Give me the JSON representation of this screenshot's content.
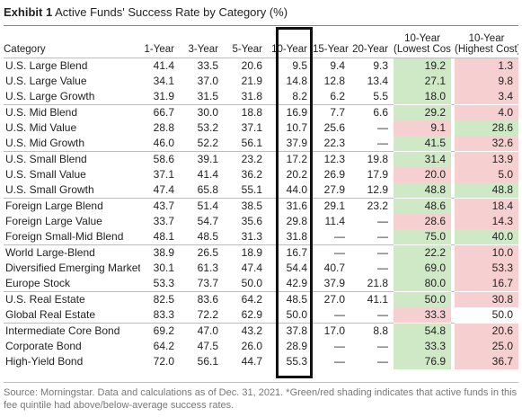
{
  "exhibit_label": "Exhibit 1",
  "title": "Active Funds' Success Rate by Category (%)",
  "columns": {
    "category": "Category",
    "y1": "1-Year",
    "y3": "3-Year",
    "y5": "5-Year",
    "y10": "10-Year",
    "y15": "15-Year",
    "y20": "20-Year",
    "low_cost_line1": "10-Year",
    "low_cost_line2": "(Lowest Cost) *",
    "high_cost_line1": "10-Year",
    "high_cost_line2": "(Highest Cost)"
  },
  "rows": [
    {
      "category": "U.S. Large Blend",
      "y1": "41.4",
      "y3": "33.5",
      "y5": "20.6",
      "y10": "9.5",
      "y15": "9.4",
      "y20": "9.3",
      "low": "19.2",
      "low_shade": "green",
      "high": "1.3",
      "high_shade": "red",
      "group_start": true
    },
    {
      "category": "U.S. Large Value",
      "y1": "34.1",
      "y3": "37.0",
      "y5": "21.9",
      "y10": "14.8",
      "y15": "12.8",
      "y20": "13.4",
      "low": "27.1",
      "low_shade": "green",
      "high": "9.8",
      "high_shade": "red",
      "group_start": false
    },
    {
      "category": "U.S. Large Growth",
      "y1": "31.9",
      "y3": "31.5",
      "y5": "31.8",
      "y10": "8.2",
      "y15": "6.2",
      "y20": "5.5",
      "low": "18.0",
      "low_shade": "green",
      "high": "3.4",
      "high_shade": "red",
      "group_start": false
    },
    {
      "category": "U.S. Mid Blend",
      "y1": "66.7",
      "y3": "30.0",
      "y5": "18.8",
      "y10": "16.9",
      "y15": "7.7",
      "y20": "6.6",
      "low": "29.2",
      "low_shade": "green",
      "high": "4.0",
      "high_shade": "red",
      "group_start": true
    },
    {
      "category": "U.S. Mid Value",
      "y1": "28.8",
      "y3": "53.2",
      "y5": "37.1",
      "y10": "10.7",
      "y15": "25.6",
      "y20": "—",
      "low": "9.1",
      "low_shade": "red",
      "high": "28.6",
      "high_shade": "green",
      "group_start": false
    },
    {
      "category": "U.S. Mid Growth",
      "y1": "46.0",
      "y3": "52.2",
      "y5": "56.1",
      "y10": "37.9",
      "y15": "22.3",
      "y20": "—",
      "low": "41.5",
      "low_shade": "green",
      "high": "32.6",
      "high_shade": "red",
      "group_start": false
    },
    {
      "category": "U.S. Small Blend",
      "y1": "58.6",
      "y3": "39.1",
      "y5": "23.2",
      "y10": "17.2",
      "y15": "12.3",
      "y20": "19.8",
      "low": "31.4",
      "low_shade": "green",
      "high": "13.9",
      "high_shade": "red",
      "group_start": true
    },
    {
      "category": "U.S. Small Value",
      "y1": "37.1",
      "y3": "41.4",
      "y5": "36.2",
      "y10": "20.2",
      "y15": "26.9",
      "y20": "17.9",
      "low": "20.0",
      "low_shade": "red",
      "high": "5.0",
      "high_shade": "red",
      "group_start": false
    },
    {
      "category": "U.S. Small Growth",
      "y1": "47.4",
      "y3": "65.8",
      "y5": "55.1",
      "y10": "44.0",
      "y15": "27.9",
      "y20": "12.9",
      "low": "48.8",
      "low_shade": "green",
      "high": "48.8",
      "high_shade": "green",
      "group_start": false
    },
    {
      "category": "Foreign Large Blend",
      "y1": "43.7",
      "y3": "51.4",
      "y5": "38.5",
      "y10": "31.6",
      "y15": "29.1",
      "y20": "23.2",
      "low": "48.6",
      "low_shade": "green",
      "high": "18.4",
      "high_shade": "red",
      "group_start": true
    },
    {
      "category": "Foreign Large Value",
      "y1": "33.7",
      "y3": "54.7",
      "y5": "35.6",
      "y10": "29.8",
      "y15": "11.4",
      "y20": "—",
      "low": "28.6",
      "low_shade": "red",
      "high": "14.3",
      "high_shade": "red",
      "group_start": false
    },
    {
      "category": "Foreign Small-Mid Blend",
      "y1": "48.1",
      "y3": "48.5",
      "y5": "31.3",
      "y10": "31.8",
      "y15": "—",
      "y20": "—",
      "low": "75.0",
      "low_shade": "green",
      "high": "40.0",
      "high_shade": "green",
      "group_start": false
    },
    {
      "category": "World Large-Blend",
      "y1": "38.9",
      "y3": "26.5",
      "y5": "18.9",
      "y10": "16.7",
      "y15": "—",
      "y20": "—",
      "low": "22.2",
      "low_shade": "green",
      "high": "10.0",
      "high_shade": "red",
      "group_start": true
    },
    {
      "category": "Diversified Emerging Markets",
      "y1": "30.1",
      "y3": "61.3",
      "y5": "47.4",
      "y10": "54.4",
      "y15": "40.7",
      "y20": "—",
      "low": "69.0",
      "low_shade": "green",
      "high": "53.3",
      "high_shade": "red",
      "group_start": false
    },
    {
      "category": "Europe Stock",
      "y1": "53.3",
      "y3": "73.7",
      "y5": "50.0",
      "y10": "42.9",
      "y15": "37.9",
      "y20": "21.8",
      "low": "80.0",
      "low_shade": "green",
      "high": "16.7",
      "high_shade": "red",
      "group_start": false
    },
    {
      "category": "U.S. Real Estate",
      "y1": "82.5",
      "y3": "83.6",
      "y5": "64.2",
      "y10": "48.5",
      "y15": "27.0",
      "y20": "41.1",
      "low": "50.0",
      "low_shade": "green",
      "high": "30.8",
      "high_shade": "red",
      "group_start": true
    },
    {
      "category": "Global Real Estate",
      "y1": "83.3",
      "y3": "72.2",
      "y5": "62.9",
      "y10": "50.0",
      "y15": "—",
      "y20": "—",
      "low": "33.3",
      "low_shade": "red",
      "high": "50.0",
      "high_shade": "none",
      "group_start": false
    },
    {
      "category": "Intermediate Core Bond",
      "y1": "69.2",
      "y3": "47.0",
      "y5": "43.2",
      "y10": "37.8",
      "y15": "17.0",
      "y20": "8.8",
      "low": "54.8",
      "low_shade": "green",
      "high": "20.6",
      "high_shade": "red",
      "group_start": true
    },
    {
      "category": "Corporate Bond",
      "y1": "64.2",
      "y3": "47.5",
      "y5": "26.0",
      "y10": "28.9",
      "y15": "—",
      "y20": "—",
      "low": "33.3",
      "low_shade": "green",
      "high": "25.0",
      "high_shade": "red",
      "group_start": false
    },
    {
      "category": "High-Yield Bond",
      "y1": "72.0",
      "y3": "56.1",
      "y5": "44.7",
      "y10": "55.3",
      "y15": "—",
      "y20": "—",
      "low": "76.9",
      "low_shade": "green",
      "high": "36.7",
      "high_shade": "red",
      "group_start": false
    }
  ],
  "colors": {
    "green_shade": "#cfe8c5",
    "red_shade": "#f6d0d0",
    "highlight_border": "#111111"
  },
  "source_note": "Source: Morningstar. Data and calculations as of Dec. 31, 2021. *Green/red shading indicates that active funds in this fee quintile had above/below-average success rates."
}
